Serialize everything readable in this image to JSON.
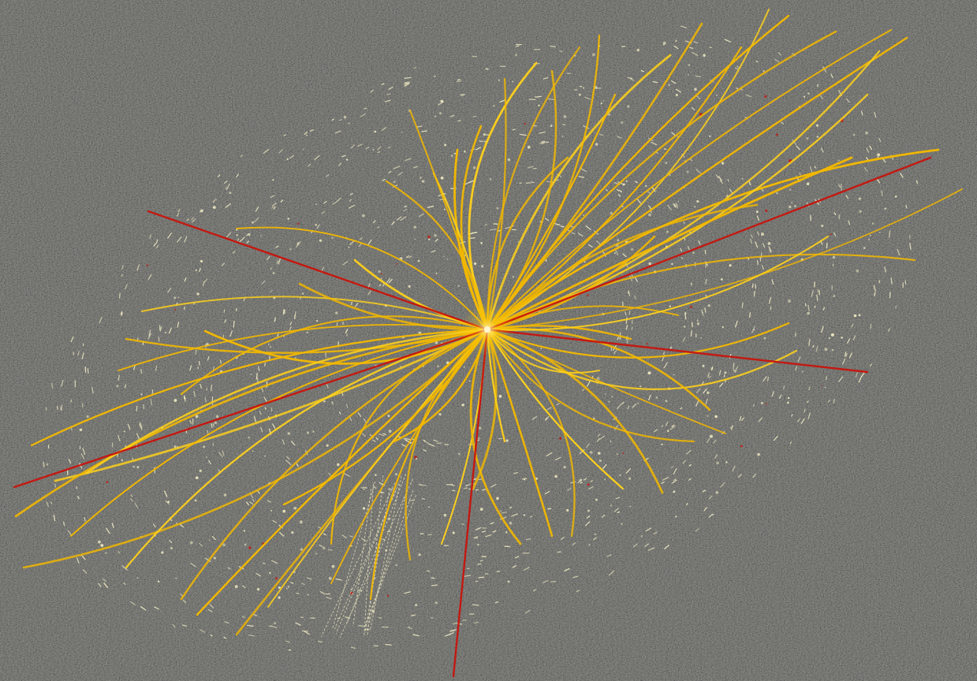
{
  "palette": {
    "background": "#1c1c1c",
    "noise_light": "#6a6a66",
    "noise_dark": "#0c0c0c",
    "hits": "#ece8c0",
    "tracks": "#f2b800",
    "tracks_bright": "#ffd21a",
    "muons": "#c8140c",
    "vertex": "#fff6d0"
  }
}
